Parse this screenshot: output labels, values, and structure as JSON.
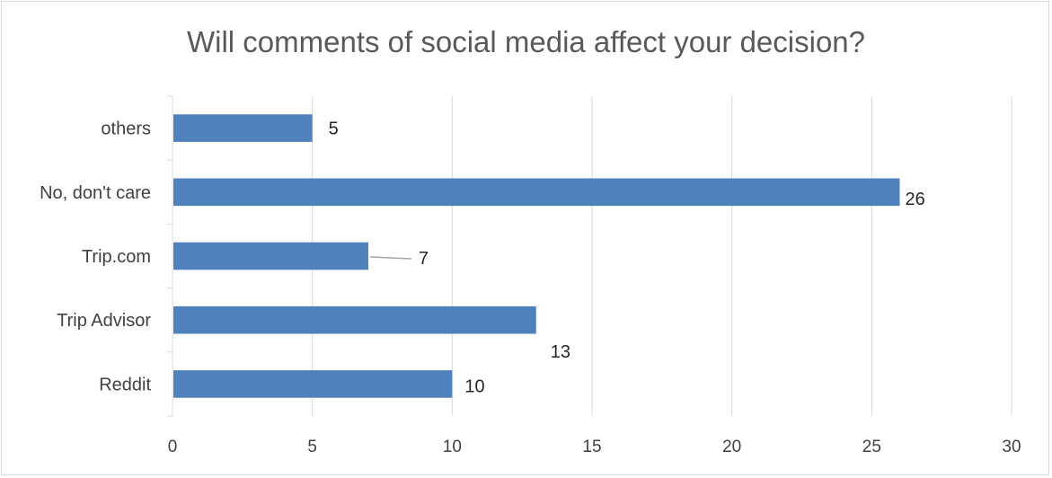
{
  "chart_data": {
    "type": "bar",
    "orientation": "horizontal",
    "title": "Will comments of social media affect your decision?",
    "categories": [
      "others",
      "No, don't care",
      "Trip.com",
      "Trip Advisor",
      "Reddit"
    ],
    "values": [
      5,
      26,
      7,
      13,
      10
    ],
    "xlim": [
      0,
      30
    ],
    "xticks": [
      0,
      5,
      10,
      15,
      20,
      25,
      30
    ],
    "grid": true,
    "legend": "none",
    "bar_color": "#4f81bd"
  }
}
